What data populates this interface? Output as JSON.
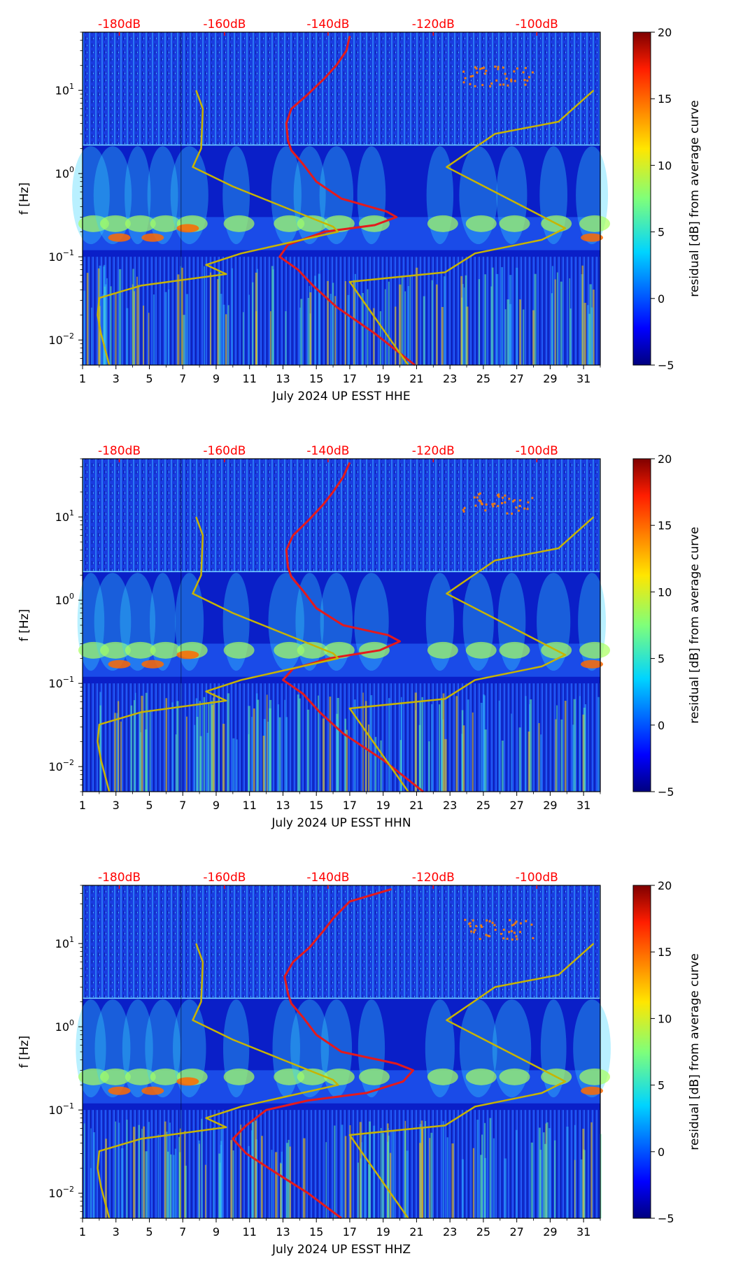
{
  "chart_data": [
    {
      "type": "heatmap",
      "xlabel": "July 2024 UP ESST  HHE",
      "ylabel": "f [Hz]",
      "x_ticks": [
        "1",
        "3",
        "5",
        "7",
        "9",
        "11",
        "13",
        "15",
        "17",
        "19",
        "21",
        "23",
        "25",
        "27",
        "29",
        "31"
      ],
      "xlim": [
        1,
        32
      ],
      "ylim": [
        0.005,
        50
      ],
      "y_ticks": [
        {
          "base": "10",
          "exp": "−2"
        },
        {
          "base": "10",
          "exp": "−1"
        },
        {
          "base": "10",
          "exp": "0"
        },
        {
          "base": "10",
          "exp": "1"
        }
      ],
      "top_axis_labels": [
        "-180dB",
        "-160dB",
        "-140dB",
        "-120dB",
        "-100dB"
      ],
      "colorbar": {
        "label": "residual [dB] from average curve",
        "min": -5,
        "max": 20,
        "ticks": [
          "−5",
          "0",
          "5",
          "10",
          "15",
          "20"
        ]
      },
      "series": [
        {
          "name": "red-psd",
          "color": "#e41a1c",
          "points": [
            [
              20.9,
              0.005
            ],
            [
              18.5,
              0.012
            ],
            [
              16.2,
              0.025
            ],
            [
              14.8,
              0.045
            ],
            [
              13.9,
              0.07
            ],
            [
              12.8,
              0.1
            ],
            [
              13.3,
              0.14
            ],
            [
              15.5,
              0.2
            ],
            [
              18.5,
              0.24
            ],
            [
              19.8,
              0.3
            ],
            [
              19.2,
              0.35
            ],
            [
              16.5,
              0.5
            ],
            [
              15.0,
              0.8
            ],
            [
              14.2,
              1.3
            ],
            [
              13.5,
              1.9
            ],
            [
              13.3,
              2.5
            ],
            [
              13.2,
              4
            ],
            [
              13.5,
              6
            ],
            [
              14.5,
              9
            ],
            [
              15.5,
              14
            ],
            [
              16.2,
              20
            ],
            [
              16.8,
              30
            ],
            [
              17.0,
              45
            ]
          ]
        },
        {
          "name": "yellow-noise-model",
          "color": "#c8b400",
          "points": [
            [
              2.6,
              0.005
            ],
            [
              2.1,
              0.012
            ],
            [
              1.9,
              0.02
            ],
            [
              2.0,
              0.032
            ],
            [
              4.5,
              0.045
            ],
            [
              9.6,
              0.062
            ],
            [
              8.4,
              0.08
            ],
            [
              10.5,
              0.11
            ],
            [
              16.3,
              0.2
            ],
            [
              16.0,
              0.23
            ],
            [
              13.0,
              0.4
            ],
            [
              10.0,
              0.7
            ],
            [
              7.6,
              1.2
            ],
            [
              8.1,
              2
            ],
            [
              8.2,
              6
            ],
            [
              7.8,
              10
            ]
          ]
        },
        {
          "name": "yellow-high-model",
          "color": "#c8b400",
          "points": [
            [
              20.5,
              0.005
            ],
            [
              17.0,
              0.05
            ],
            [
              22.7,
              0.065
            ],
            [
              24.5,
              0.11
            ],
            [
              28.5,
              0.16
            ],
            [
              29.9,
              0.22
            ],
            [
              22.8,
              1.2
            ],
            [
              25.7,
              3.0
            ],
            [
              29.5,
              4.2
            ],
            [
              31.6,
              10
            ]
          ]
        }
      ]
    },
    {
      "type": "heatmap",
      "xlabel": "July 2024 UP ESST  HHN",
      "ylabel": "f [Hz]",
      "x_ticks": [
        "1",
        "3",
        "5",
        "7",
        "9",
        "11",
        "13",
        "15",
        "17",
        "19",
        "21",
        "23",
        "25",
        "27",
        "29",
        "31"
      ],
      "xlim": [
        1,
        32
      ],
      "ylim": [
        0.005,
        50
      ],
      "y_ticks": [
        {
          "base": "10",
          "exp": "−2"
        },
        {
          "base": "10",
          "exp": "−1"
        },
        {
          "base": "10",
          "exp": "0"
        },
        {
          "base": "10",
          "exp": "1"
        }
      ],
      "top_axis_labels": [
        "-180dB",
        "-160dB",
        "-140dB",
        "-120dB",
        "-100dB"
      ],
      "colorbar": {
        "label": "residual [dB] from average curve",
        "min": -5,
        "max": 20,
        "ticks": [
          "−5",
          "0",
          "5",
          "10",
          "15",
          "20"
        ]
      },
      "series": [
        {
          "name": "red-psd",
          "color": "#e41a1c",
          "points": [
            [
              21.4,
              0.005
            ],
            [
              19.0,
              0.012
            ],
            [
              16.6,
              0.025
            ],
            [
              15.2,
              0.045
            ],
            [
              14.2,
              0.075
            ],
            [
              13.0,
              0.11
            ],
            [
              13.6,
              0.15
            ],
            [
              15.8,
              0.2
            ],
            [
              18.8,
              0.25
            ],
            [
              20.0,
              0.32
            ],
            [
              19.3,
              0.38
            ],
            [
              16.6,
              0.5
            ],
            [
              15.0,
              0.8
            ],
            [
              14.2,
              1.3
            ],
            [
              13.5,
              1.9
            ],
            [
              13.3,
              2.5
            ],
            [
              13.2,
              4
            ],
            [
              13.6,
              6
            ],
            [
              14.5,
              9
            ],
            [
              15.4,
              14
            ],
            [
              16.0,
              20
            ],
            [
              16.6,
              30
            ],
            [
              17.0,
              45
            ]
          ]
        },
        {
          "name": "yellow-noise-model",
          "color": "#c8b400",
          "points": [
            [
              2.6,
              0.005
            ],
            [
              2.1,
              0.012
            ],
            [
              1.9,
              0.02
            ],
            [
              2.0,
              0.032
            ],
            [
              4.5,
              0.045
            ],
            [
              9.6,
              0.062
            ],
            [
              8.4,
              0.08
            ],
            [
              10.5,
              0.11
            ],
            [
              16.3,
              0.2
            ],
            [
              16.0,
              0.23
            ],
            [
              13.0,
              0.4
            ],
            [
              10.0,
              0.7
            ],
            [
              7.6,
              1.2
            ],
            [
              8.1,
              2
            ],
            [
              8.2,
              6
            ],
            [
              7.8,
              10
            ]
          ]
        },
        {
          "name": "yellow-high-model",
          "color": "#c8b400",
          "points": [
            [
              20.5,
              0.005
            ],
            [
              17.0,
              0.05
            ],
            [
              22.7,
              0.065
            ],
            [
              24.5,
              0.11
            ],
            [
              28.5,
              0.16
            ],
            [
              29.9,
              0.22
            ],
            [
              22.8,
              1.2
            ],
            [
              25.7,
              3.0
            ],
            [
              29.5,
              4.2
            ],
            [
              31.6,
              10
            ]
          ]
        }
      ]
    },
    {
      "type": "heatmap",
      "xlabel": "July 2024 UP ESST  HHZ",
      "ylabel": "f [Hz]",
      "x_ticks": [
        "1",
        "3",
        "5",
        "7",
        "9",
        "11",
        "13",
        "15",
        "17",
        "19",
        "21",
        "23",
        "25",
        "27",
        "29",
        "31"
      ],
      "xlim": [
        1,
        32
      ],
      "ylim": [
        0.005,
        50
      ],
      "y_ticks": [
        {
          "base": "10",
          "exp": "−2"
        },
        {
          "base": "10",
          "exp": "−1"
        },
        {
          "base": "10",
          "exp": "0"
        },
        {
          "base": "10",
          "exp": "1"
        }
      ],
      "top_axis_labels": [
        "-180dB",
        "-160dB",
        "-140dB",
        "-120dB",
        "-100dB"
      ],
      "colorbar": {
        "label": "residual [dB] from average curve",
        "min": -5,
        "max": 20,
        "ticks": [
          "−5",
          "0",
          "5",
          "10",
          "15",
          "20"
        ]
      },
      "series": [
        {
          "name": "red-psd",
          "color": "#e41a1c",
          "points": [
            [
              16.5,
              0.005
            ],
            [
              14.5,
              0.01
            ],
            [
              12.5,
              0.018
            ],
            [
              10.8,
              0.03
            ],
            [
              10.0,
              0.045
            ],
            [
              10.8,
              0.065
            ],
            [
              12.0,
              0.1
            ],
            [
              14.5,
              0.13
            ],
            [
              18.0,
              0.16
            ],
            [
              20.2,
              0.22
            ],
            [
              20.8,
              0.3
            ],
            [
              19.8,
              0.36
            ],
            [
              16.5,
              0.5
            ],
            [
              15.0,
              0.8
            ],
            [
              14.2,
              1.3
            ],
            [
              13.5,
              1.9
            ],
            [
              13.3,
              2.5
            ],
            [
              13.1,
              4
            ],
            [
              13.6,
              6
            ],
            [
              14.6,
              9
            ],
            [
              15.4,
              14
            ],
            [
              16.0,
              20
            ],
            [
              17.0,
              32
            ],
            [
              19.5,
              45
            ]
          ]
        },
        {
          "name": "yellow-noise-model",
          "color": "#c8b400",
          "points": [
            [
              2.6,
              0.005
            ],
            [
              2.1,
              0.012
            ],
            [
              1.9,
              0.02
            ],
            [
              2.0,
              0.032
            ],
            [
              4.5,
              0.045
            ],
            [
              9.6,
              0.062
            ],
            [
              8.4,
              0.08
            ],
            [
              10.5,
              0.11
            ],
            [
              16.3,
              0.2
            ],
            [
              16.0,
              0.23
            ],
            [
              13.0,
              0.4
            ],
            [
              10.0,
              0.7
            ],
            [
              7.6,
              1.2
            ],
            [
              8.1,
              2
            ],
            [
              8.2,
              6
            ],
            [
              7.8,
              10
            ]
          ]
        },
        {
          "name": "yellow-high-model",
          "color": "#c8b400",
          "points": [
            [
              20.5,
              0.005
            ],
            [
              17.0,
              0.05
            ],
            [
              22.7,
              0.065
            ],
            [
              24.5,
              0.11
            ],
            [
              28.5,
              0.16
            ],
            [
              29.9,
              0.22
            ],
            [
              22.8,
              1.2
            ],
            [
              25.7,
              3.0
            ],
            [
              29.5,
              4.2
            ],
            [
              31.6,
              10
            ]
          ]
        }
      ]
    }
  ]
}
